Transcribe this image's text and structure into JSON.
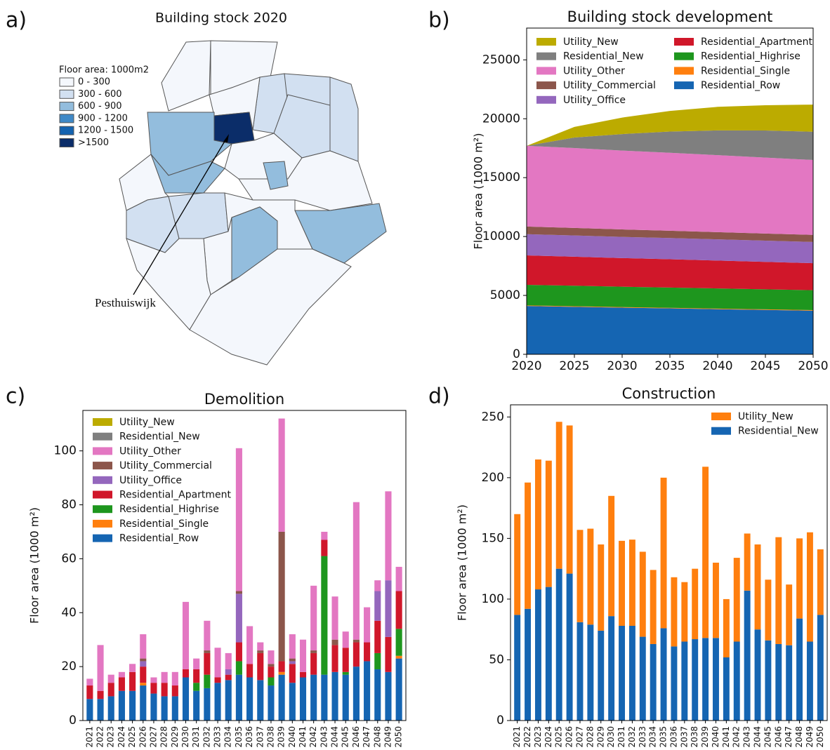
{
  "chart_data": [
    {
      "type": "map",
      "panel": "a)",
      "title": "Building stock 2020",
      "legend_title": "Floor area: 1000m2",
      "classes": [
        {
          "label": "0 - 300",
          "color": "#f4f7fc"
        },
        {
          "label": "300 - 600",
          "color": "#d2e0f1"
        },
        {
          "label": "600 - 900",
          "color": "#93bddd"
        },
        {
          "label": "900 - 1200",
          "color": "#3f89c7"
        },
        {
          "label": "1200 - 1500",
          "color": "#1463b0"
        },
        {
          "label": ">1500",
          "color": "#0b2d69"
        }
      ],
      "annotation": "Pesthuiswijk"
    },
    {
      "type": "area",
      "panel": "b)",
      "title": "Building stock development",
      "y_label": "Floor area (1000 m²)",
      "legend": "upper left",
      "legend_columns": 2,
      "x": [
        2020,
        2025,
        2030,
        2035,
        2040,
        2045,
        2050
      ],
      "xlim": [
        2020,
        2050
      ],
      "xticks": [
        2020,
        2025,
        2030,
        2035,
        2040,
        2045,
        2050
      ],
      "ylim": [
        0,
        27700
      ],
      "yticks": [
        0,
        5000,
        10000,
        15000,
        20000,
        25000
      ],
      "series": [
        {
          "name": "Utility_New",
          "color": "#bcab00",
          "values": [
            0,
            900,
            1400,
            1750,
            2000,
            2150,
            2300
          ]
        },
        {
          "name": "Residential_New",
          "color": "#7f7f7f",
          "values": [
            0,
            900,
            1400,
            1800,
            2100,
            2300,
            2400
          ]
        },
        {
          "name": "Utility_Other",
          "color": "#e377c2",
          "values": [
            6850,
            6780,
            6700,
            6620,
            6540,
            6450,
            6360
          ]
        },
        {
          "name": "Utility_Commercial",
          "color": "#8c564b",
          "values": [
            650,
            640,
            630,
            620,
            610,
            600,
            600
          ]
        },
        {
          "name": "Utility_Office",
          "color": "#9467bd",
          "values": [
            1800,
            1800,
            1800,
            1800,
            1800,
            1800,
            1800
          ]
        },
        {
          "name": "Residential_Apartment",
          "color": "#d0172a",
          "values": [
            2500,
            2470,
            2430,
            2400,
            2370,
            2330,
            2300
          ]
        },
        {
          "name": "Residential_Highrise",
          "color": "#1e961e",
          "values": [
            1750,
            1740,
            1730,
            1720,
            1710,
            1700,
            1690
          ]
        },
        {
          "name": "Residential_Single",
          "color": "#ff7f0e",
          "values": [
            50,
            50,
            50,
            50,
            50,
            50,
            50
          ]
        },
        {
          "name": "Residential_Row",
          "color": "#1565b2",
          "values": [
            4100,
            4030,
            3960,
            3900,
            3830,
            3770,
            3700
          ]
        }
      ]
    },
    {
      "type": "bar",
      "panel": "c)",
      "title": "Demolition",
      "y_label": "Floor area (1000 m²)",
      "legend": "upper left",
      "legend_columns": 1,
      "categories": [
        "2021",
        "2022",
        "2023",
        "2024",
        "2025",
        "2026",
        "2027",
        "2028",
        "2029",
        "2030",
        "2031",
        "2032",
        "2033",
        "2034",
        "2035",
        "2036",
        "2037",
        "2038",
        "2039",
        "2040",
        "2041",
        "2042",
        "2043",
        "2044",
        "2045",
        "2046",
        "2047",
        "2048",
        "2049",
        "2050"
      ],
      "ylim": [
        0,
        115
      ],
      "yticks": [
        0,
        20,
        40,
        60,
        80,
        100
      ],
      "series": [
        {
          "name": "Utility_New",
          "color": "#bcab00",
          "values": [
            0,
            0,
            0,
            0,
            0,
            0,
            0,
            0,
            0,
            0,
            0,
            0,
            0,
            0,
            0,
            0,
            0,
            0,
            0,
            0,
            0,
            0,
            0,
            0,
            0,
            0,
            0,
            0,
            0,
            0
          ]
        },
        {
          "name": "Residential_New",
          "color": "#7f7f7f",
          "values": [
            0,
            0,
            0,
            0,
            0,
            0,
            0,
            0,
            0,
            0,
            0,
            0,
            0,
            0,
            0,
            0,
            0,
            0,
            0,
            0,
            0,
            0,
            0,
            0,
            0,
            0,
            0,
            0,
            0,
            0
          ]
        },
        {
          "name": "Utility_Other",
          "color": "#e377c2",
          "values": [
            2.5,
            17,
            3,
            2,
            3,
            9,
            2,
            4,
            5,
            25,
            4,
            11,
            11,
            6,
            53,
            14,
            3,
            5,
            42,
            9,
            12,
            24,
            3,
            16,
            6,
            51,
            13,
            4,
            33,
            9
          ]
        },
        {
          "name": "Utility_Commercial",
          "color": "#8c564b",
          "values": [
            0,
            0,
            0,
            0,
            0,
            1,
            0,
            0,
            0,
            0,
            0,
            1,
            0,
            0,
            1,
            0,
            1,
            1,
            48,
            1,
            0,
            1,
            0,
            2,
            0,
            1,
            0,
            0,
            0,
            0
          ]
        },
        {
          "name": "Utility_Office",
          "color": "#9467bd",
          "values": [
            0,
            0,
            0,
            0,
            0,
            2,
            0,
            0,
            0,
            0,
            0,
            0,
            0,
            2,
            18,
            0,
            0,
            0,
            0,
            1,
            0,
            0,
            0,
            0,
            0,
            0,
            0,
            11,
            21,
            0
          ]
        },
        {
          "name": "Residential_Apartment",
          "color": "#d0172a",
          "values": [
            5,
            3,
            5,
            5,
            7,
            6,
            4,
            5,
            4,
            3,
            5,
            8,
            2,
            2,
            7,
            5,
            10,
            4,
            4,
            7,
            2,
            8,
            6,
            10,
            9,
            9,
            7,
            12,
            13,
            14
          ]
        },
        {
          "name": "Residential_Highrise",
          "color": "#1e961e",
          "values": [
            0,
            0,
            0,
            0,
            0,
            0,
            0,
            0,
            0,
            0,
            3,
            5,
            0,
            0,
            5,
            0,
            0,
            3,
            0,
            0,
            0,
            0,
            44,
            0,
            1,
            0,
            0,
            6,
            0,
            10
          ]
        },
        {
          "name": "Residential_Single",
          "color": "#ff7f0e",
          "values": [
            0,
            0,
            0,
            0,
            0,
            1,
            0,
            0,
            0,
            0,
            0,
            0,
            0,
            0,
            0,
            0,
            0,
            0,
            1,
            0,
            0,
            0,
            0,
            0,
            0,
            0,
            0,
            0,
            0,
            1
          ]
        },
        {
          "name": "Residential_Row",
          "color": "#1565b2",
          "values": [
            8,
            8,
            9,
            11,
            11,
            13,
            10,
            9,
            9,
            16,
            11,
            12,
            14,
            15,
            17,
            16,
            15,
            13,
            17,
            14,
            16,
            17,
            17,
            18,
            17,
            20,
            22,
            19,
            18,
            23
          ]
        }
      ]
    },
    {
      "type": "bar",
      "panel": "d)",
      "title": "Construction",
      "y_label": "Floor area (1000 m²)",
      "legend": "upper right",
      "legend_columns": 1,
      "categories": [
        "2021",
        "2022",
        "2023",
        "2024",
        "2025",
        "2026",
        "2027",
        "2028",
        "2029",
        "2030",
        "2031",
        "2032",
        "2033",
        "2034",
        "2035",
        "2036",
        "2037",
        "2038",
        "2039",
        "2040",
        "2041",
        "2042",
        "2043",
        "2044",
        "2045",
        "2046",
        "2047",
        "2048",
        "2049",
        "2050"
      ],
      "ylim": [
        0,
        260
      ],
      "yticks": [
        0,
        50,
        100,
        150,
        200,
        250
      ],
      "series": [
        {
          "name": "Utility_New",
          "color": "#ff7f0e",
          "values": [
            83,
            104,
            107,
            104,
            121,
            122,
            76,
            79,
            71,
            99,
            70,
            71,
            70,
            61,
            124,
            57,
            49,
            58,
            141,
            62,
            48,
            69,
            47,
            70,
            50,
            88,
            50,
            66,
            90,
            54
          ]
        },
        {
          "name": "Residential_New",
          "color": "#1565b2",
          "values": [
            87,
            92,
            108,
            110,
            125,
            121,
            81,
            79,
            74,
            86,
            78,
            78,
            69,
            63,
            76,
            61,
            65,
            67,
            68,
            68,
            52,
            65,
            107,
            75,
            66,
            63,
            62,
            84,
            65,
            87
          ]
        }
      ]
    }
  ]
}
